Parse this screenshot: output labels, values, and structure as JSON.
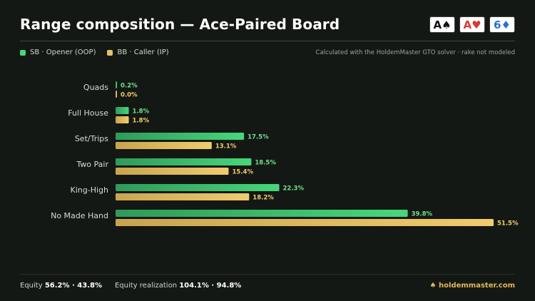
{
  "header": {
    "title": "Range composition — Ace-Paired Board",
    "board": [
      {
        "rank": "A",
        "suit": "♠",
        "suit_name": "spade-icon",
        "style": "black"
      },
      {
        "rank": "A",
        "suit": "♥",
        "suit_name": "heart-icon",
        "style": "red"
      },
      {
        "rank": "6",
        "suit": "♦",
        "suit_name": "diamond-icon",
        "style": "blue"
      }
    ]
  },
  "legend": {
    "sb": "SB · Opener (OOP)",
    "bb": "BB · Caller (IP)",
    "note": "Calculated with the HoldemMaster GTO solver · rake not modeled"
  },
  "colors": {
    "sb_start": "#2f9a5a",
    "sb_end": "#47d77a",
    "bb_start": "#c9a44e",
    "bb_end": "#f0cc6e",
    "sb_label": "#6fe08f",
    "bb_label": "#f0cc6e"
  },
  "chart_data": {
    "type": "bar",
    "orientation": "horizontal",
    "categories": [
      "Quads",
      "Full House",
      "Set/Trips",
      "Two Pair",
      "King-High",
      "No Made Hand"
    ],
    "series": [
      {
        "name": "SB · Opener (OOP)",
        "values": [
          0.2,
          1.8,
          17.5,
          18.5,
          22.3,
          39.8
        ],
        "labels": [
          "0.2%",
          "1.8%",
          "17.5%",
          "18.5%",
          "22.3%",
          "39.8%"
        ]
      },
      {
        "name": "BB · Caller (IP)",
        "values": [
          0.0,
          1.8,
          13.1,
          15.4,
          18.2,
          51.5
        ],
        "labels": [
          "0.0%",
          "1.8%",
          "13.1%",
          "15.4%",
          "18.2%",
          "51.5%"
        ]
      }
    ],
    "xlim": [
      0,
      51.5
    ],
    "grid": false,
    "legend": "top-left"
  },
  "footer": {
    "equity_label": "Equity",
    "equity_values": "56.2% · 43.8%",
    "realization_label": "Equity realization",
    "realization_values": "104.1% · 94.8%",
    "brand_icon": "spade-icon",
    "brand": "holdemmaster.com"
  }
}
